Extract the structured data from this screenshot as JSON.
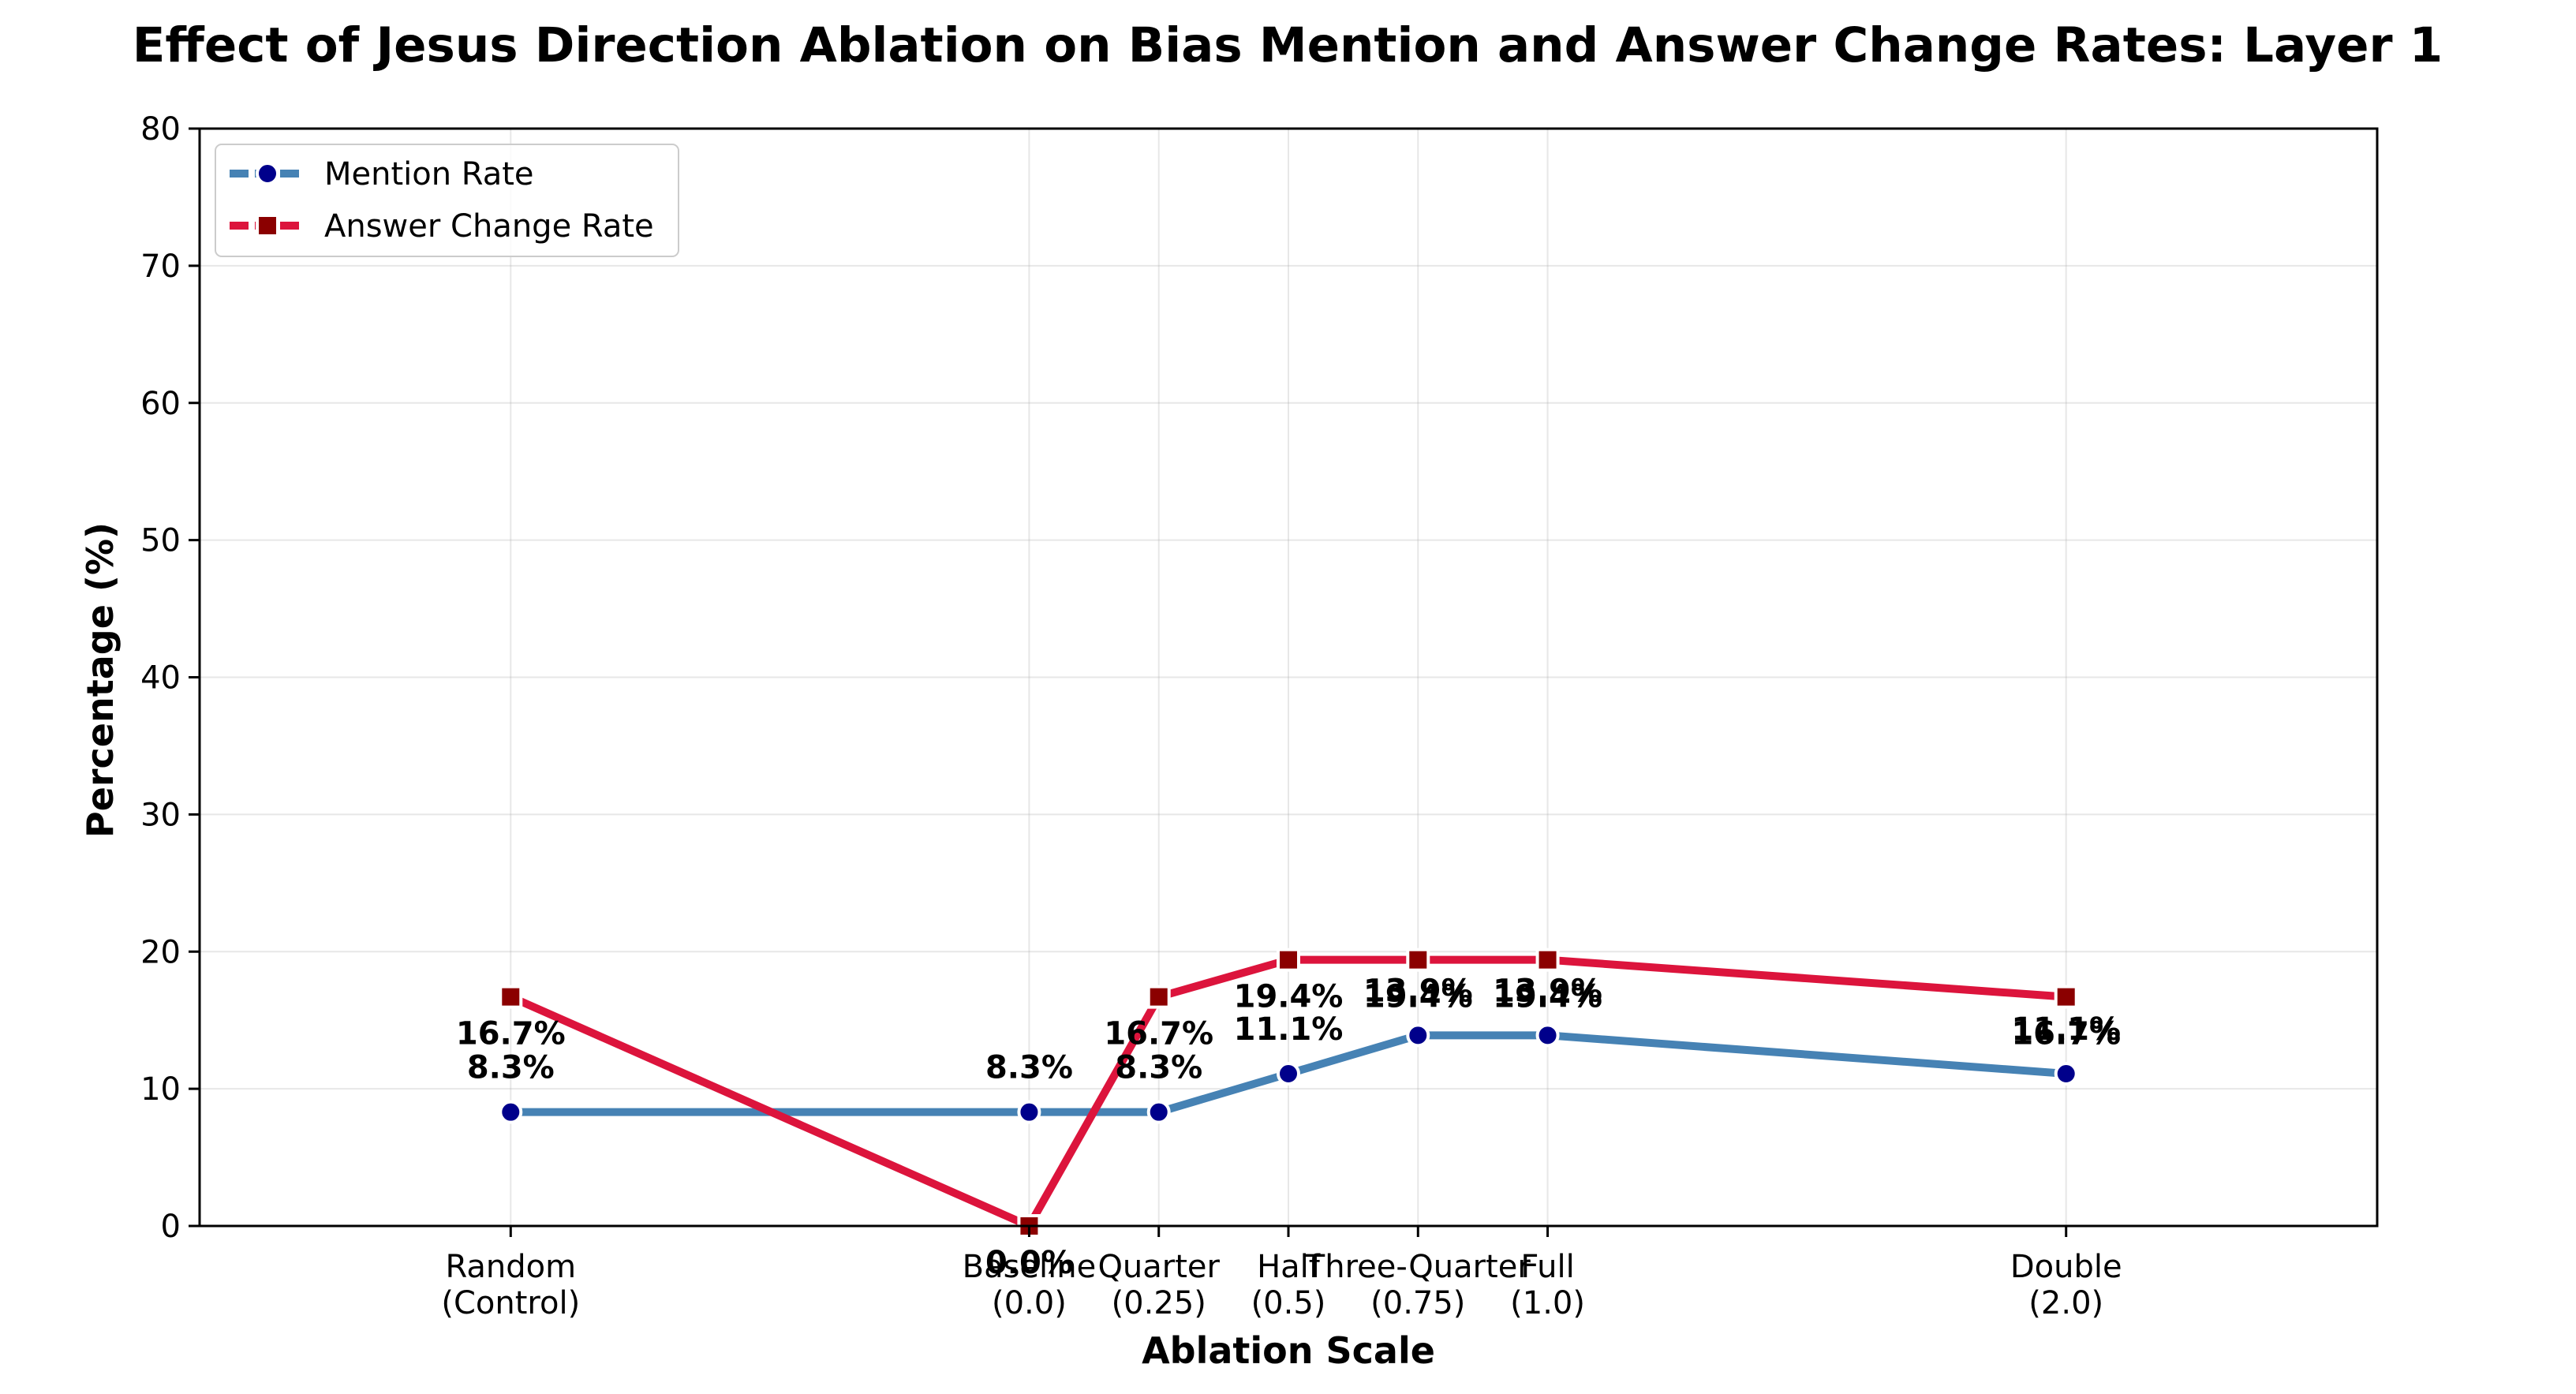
{
  "chart_data": {
    "type": "line",
    "title": "Effect of Jesus Direction Ablation on Bias Mention and Answer Change Rates: Layer 1",
    "xlabel": "Ablation Scale",
    "ylabel": "Percentage (%)",
    "ylim": [
      0,
      80
    ],
    "yticks": [
      "0",
      "10",
      "20",
      "30",
      "40",
      "50",
      "60",
      "70",
      "80"
    ],
    "grid": true,
    "legend_position": "upper-left",
    "categories": [
      {
        "x": -1.0,
        "line1": "Random",
        "line2": "(Control)"
      },
      {
        "x": 0.0,
        "line1": "Baseline",
        "line2": "(0.0)"
      },
      {
        "x": 0.25,
        "line1": "Quarter",
        "line2": "(0.25)"
      },
      {
        "x": 0.5,
        "line1": "Half",
        "line2": "(0.5)"
      },
      {
        "x": 0.75,
        "line1": "Three-Quarter",
        "line2": "(0.75)"
      },
      {
        "x": 1.0,
        "line1": "Full",
        "line2": "(1.0)"
      },
      {
        "x": 2.0,
        "line1": "Double",
        "line2": "(2.0)"
      }
    ],
    "series": [
      {
        "name": "Mention Rate",
        "line_color": "#4682B4",
        "marker_color": "#00008B",
        "marker": "circle",
        "values": [
          8.3,
          8.3,
          8.3,
          11.1,
          13.9,
          13.9,
          11.1
        ],
        "labels": [
          "8.3%",
          "8.3%",
          "8.3%",
          "11.1%",
          "13.9%",
          "13.9%",
          "11.1%"
        ]
      },
      {
        "name": "Answer Change Rate",
        "line_color": "#DC143C",
        "marker_color": "#8B0000",
        "marker": "square",
        "values": [
          16.7,
          0.0,
          16.7,
          19.4,
          19.4,
          19.4,
          16.7
        ],
        "labels": [
          "16.7%",
          "0.0%",
          "16.7%",
          "19.4%",
          "19.4%",
          "19.4%",
          "16.7%"
        ]
      }
    ]
  }
}
